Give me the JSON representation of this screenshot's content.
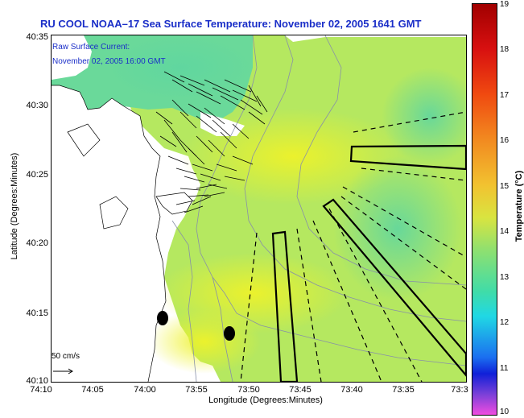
{
  "title": "RU COOL  NOAA–17  Sea Surface Temperature:  November 02, 2005 1641 GMT",
  "legend": {
    "line1": "Raw Surface Current:",
    "line2": "November 02, 2005 16:00 GMT"
  },
  "scale_bar": {
    "label": "50 cm/s"
  },
  "x_axis": {
    "label": "Longitude (Degrees:Minutes)",
    "ticks": [
      "74:10",
      "74:05",
      "74:00",
      "73:55",
      "73:50",
      "73:45",
      "73:40",
      "73:35",
      "73:3"
    ]
  },
  "y_axis": {
    "label": "Latitude (Degrees:Minutes)",
    "ticks": [
      "40:35",
      "40:30",
      "40:25",
      "40:20",
      "40:15",
      "40:10"
    ]
  },
  "colorbar": {
    "label": "Temperature (°C)",
    "ticks": [
      "19",
      "18",
      "17",
      "16",
      "15",
      "14",
      "13",
      "12",
      "11",
      "10"
    ],
    "range": [
      10,
      19
    ]
  },
  "colors": {
    "title": "#1a2ec8",
    "sst_dominant": "#b5e860",
    "sst_warm": "#eaf030",
    "sst_cool": "#58d4a0",
    "land": "#ffffff"
  }
}
